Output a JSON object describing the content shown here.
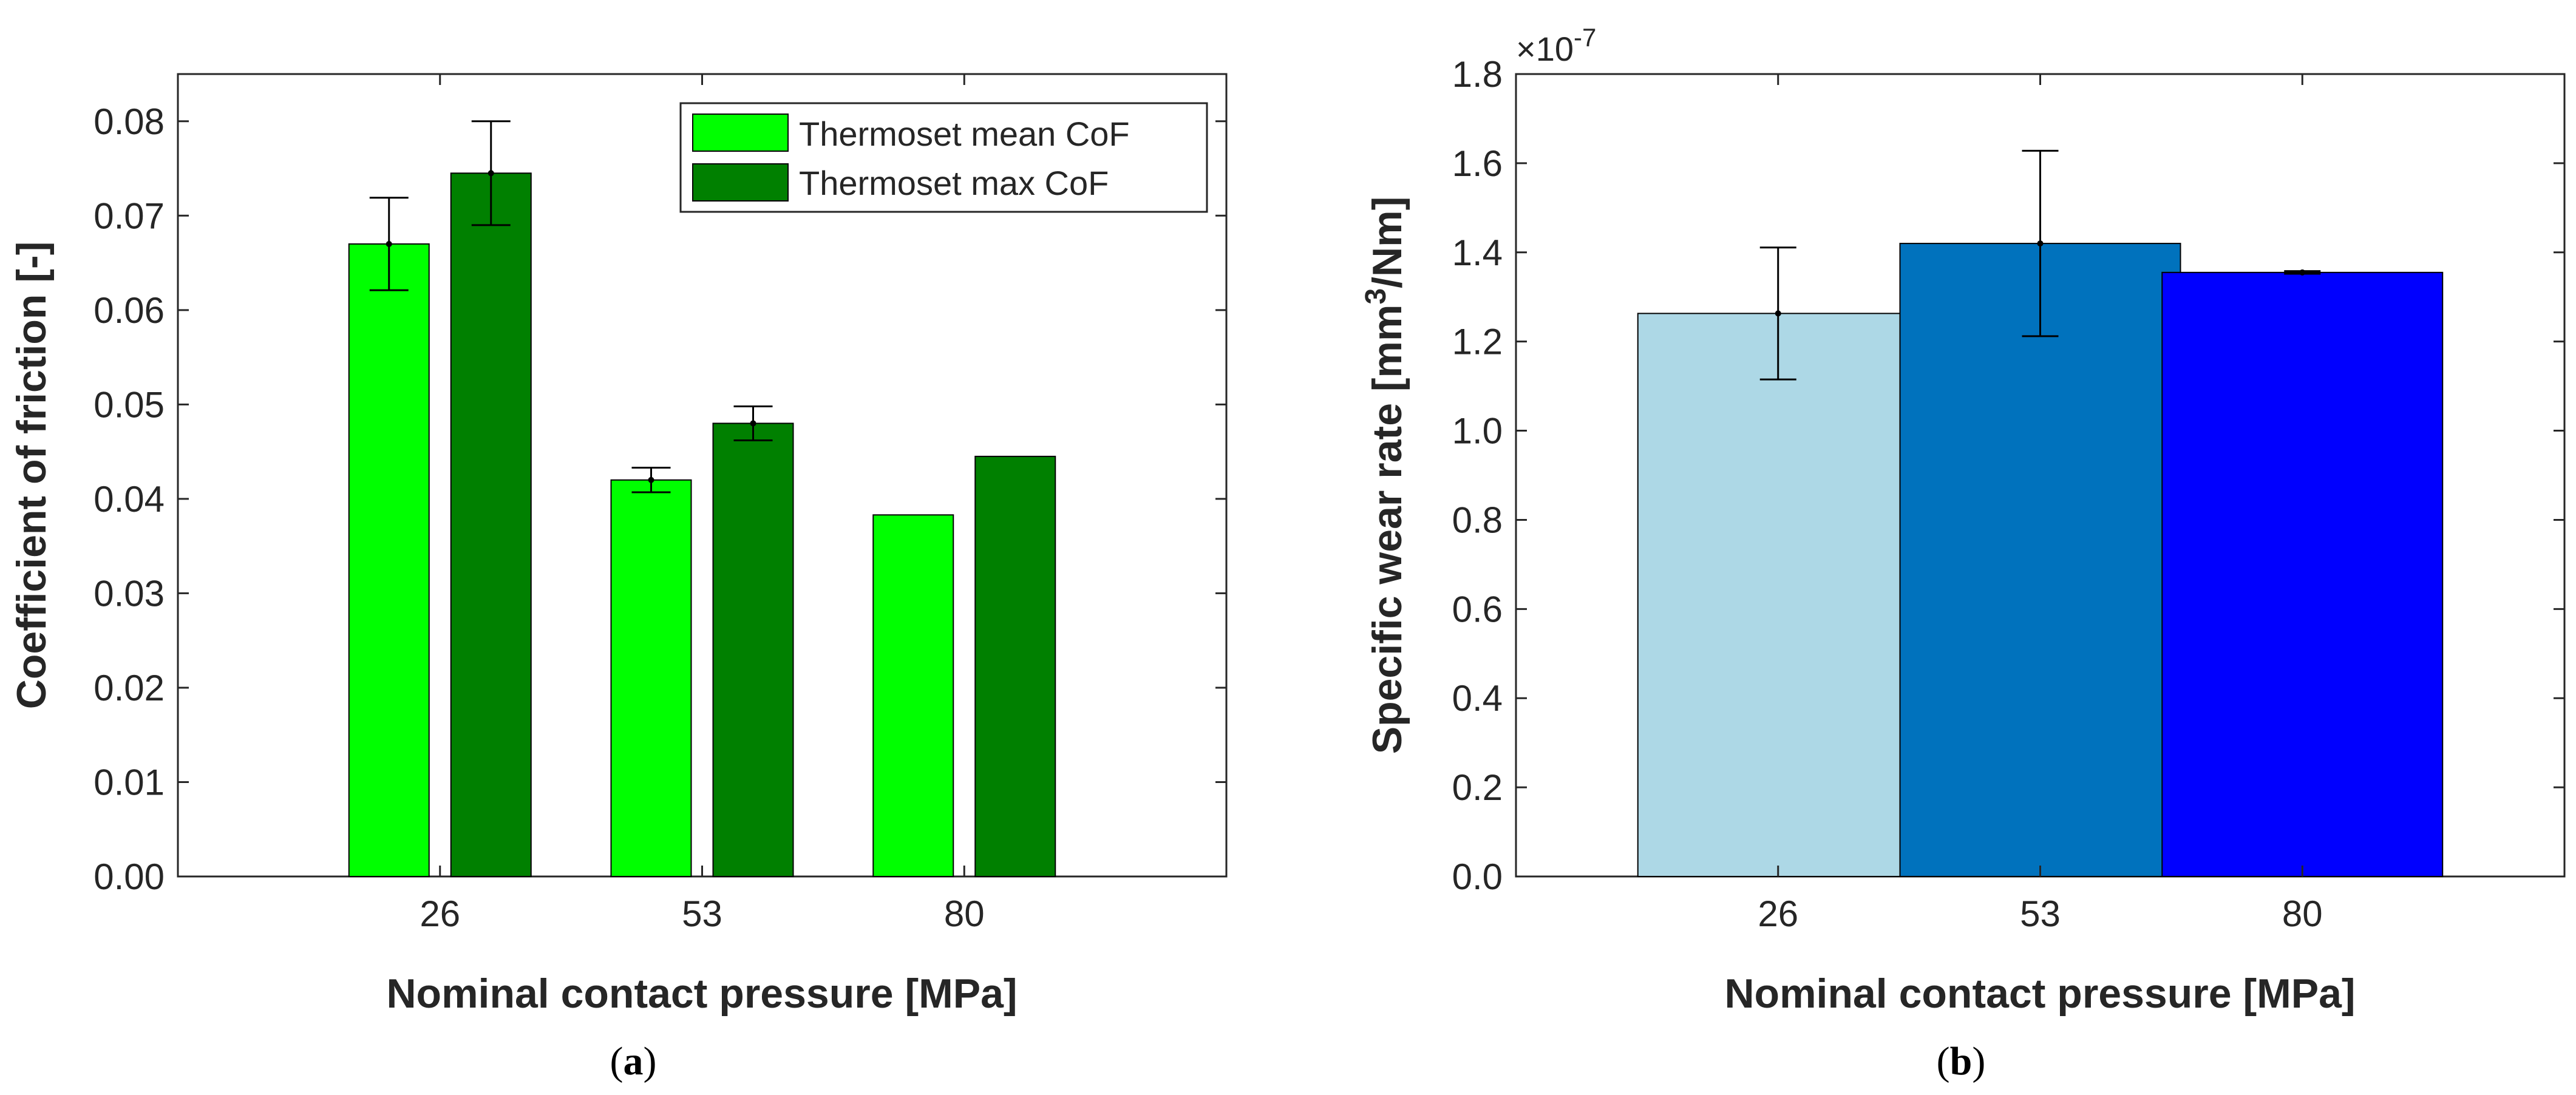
{
  "chart_data": [
    {
      "type": "bar",
      "panel_label": "a",
      "categories": [
        "26",
        "53",
        "80"
      ],
      "series": [
        {
          "name": "Thermoset mean CoF",
          "color": "#00ff00",
          "values": [
            0.067,
            0.042,
            0.0383
          ],
          "errors": [
            0.0049,
            0.0013,
            null
          ]
        },
        {
          "name": "Thermoset max CoF",
          "color": "#008000",
          "values": [
            0.0745,
            0.048,
            0.0445
          ],
          "errors": [
            0.0055,
            0.0018,
            null
          ]
        }
      ],
      "xlabel": "Nominal contact pressure [MPa]",
      "ylabel": "Coefficient of friction [-]",
      "ylim": [
        0,
        0.085
      ],
      "yticks": [
        "0.00",
        "0.01",
        "0.02",
        "0.03",
        "0.04",
        "0.05",
        "0.06",
        "0.07",
        "0.08"
      ],
      "legend_position": "top-right",
      "grid": false
    },
    {
      "type": "bar",
      "panel_label": "b",
      "categories": [
        "26",
        "53",
        "80"
      ],
      "colors": [
        "#add8e6",
        "#0072bd",
        "#0000ff"
      ],
      "values": [
        1.263,
        1.42,
        1.355
      ],
      "errors": [
        0.148,
        0.208,
        0.003
      ],
      "multiplier_base": "×10",
      "multiplier_exponent": "-7",
      "xlabel": "Nominal contact pressure [MPa]",
      "ylabel_prefix": "Specific wear rate [mm",
      "ylabel_sup": "3",
      "ylabel_suffix": "/Nm]",
      "ylim": [
        0,
        1.8
      ],
      "yticks": [
        "0.0",
        "0.2",
        "0.4",
        "0.6",
        "0.8",
        "1.0",
        "1.2",
        "1.4",
        "1.6",
        "1.8"
      ],
      "grid": false
    }
  ]
}
